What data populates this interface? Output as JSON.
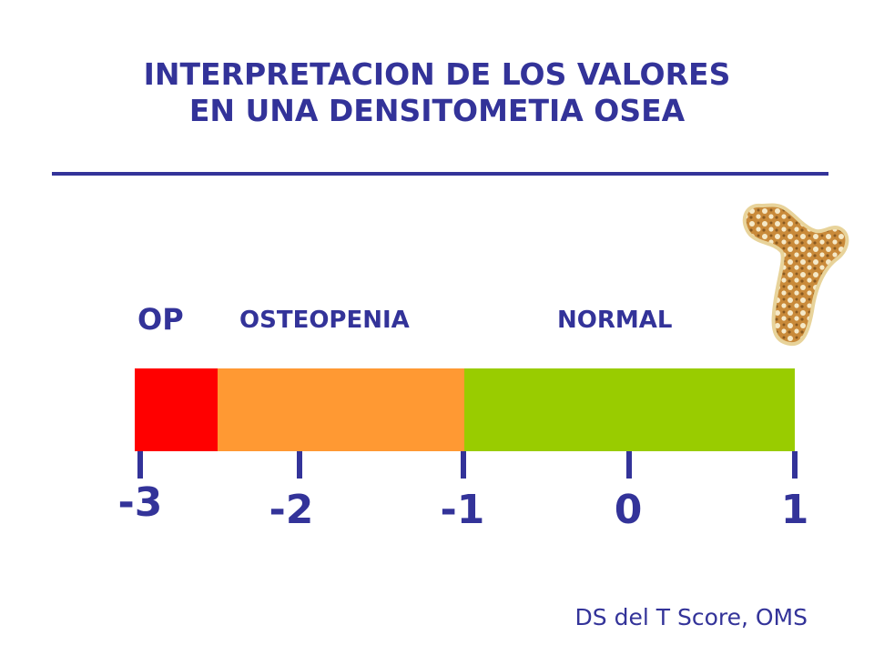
{
  "title": {
    "line1": "INTERPRETACION DE LOS VALORES",
    "line2": "EN UNA DENSITOMETIA OSEA"
  },
  "zones": {
    "op": {
      "label": "OP",
      "color": "#ff0000"
    },
    "osteopenia": {
      "label": "OSTEOPENIA",
      "color": "#ff9933"
    },
    "normal": {
      "label": "NORMAL",
      "color": "#99cc00"
    }
  },
  "ticks": [
    {
      "label": "-3"
    },
    {
      "label": "-2"
    },
    {
      "label": "-1"
    },
    {
      "label": "0"
    },
    {
      "label": "1"
    }
  ],
  "source": "DS del T Score, OMS",
  "icons": {
    "bone": "femur-bone-icon"
  },
  "colors": {
    "accent": "#333399"
  }
}
